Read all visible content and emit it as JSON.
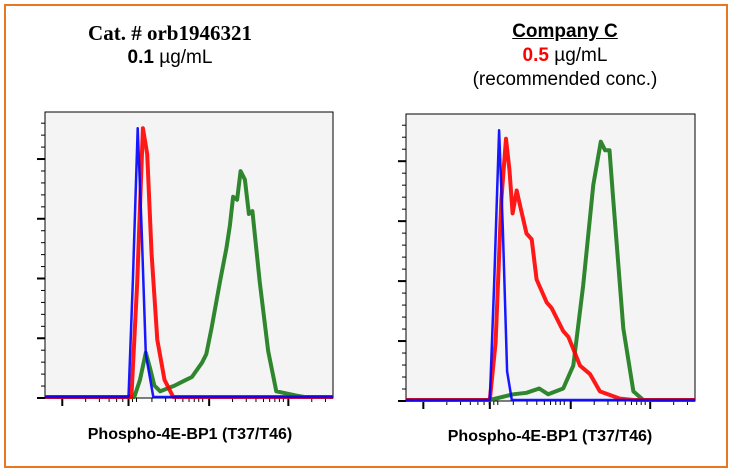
{
  "left_header": {
    "title": "Cat. # orb1946321",
    "conc_value": "0.1",
    "conc_unit": "µg/mL"
  },
  "right_header": {
    "title": "Company C",
    "conc_value": "0.5",
    "conc_unit": "µg/mL",
    "note": "(recommended conc.)"
  },
  "colors": {
    "frame": "#e87722",
    "blue": "#0000ff",
    "red": "#ff0000",
    "green": "#1a7a1a",
    "highlight": "#ff0000"
  },
  "chart_data": [
    {
      "type": "line",
      "xlabel": "Phospho-4E-BP1 (T37/T46)",
      "ylabel": "",
      "x_scale": "log",
      "xlim": [
        0,
        1
      ],
      "ylim": [
        0,
        1
      ],
      "grid": false,
      "series": [
        {
          "color": "blue",
          "points": [
            [
              0,
              0
            ],
            [
              0.29,
              0
            ],
            [
              0.305,
              0.4
            ],
            [
              0.322,
              0.94
            ],
            [
              0.335,
              0.6
            ],
            [
              0.35,
              0.15
            ],
            [
              0.376,
              0
            ],
            [
              1,
              0
            ]
          ]
        },
        {
          "color": "red",
          "points": [
            [
              0,
              0
            ],
            [
              0.3,
              0
            ],
            [
              0.32,
              0.4
            ],
            [
              0.34,
              0.94
            ],
            [
              0.355,
              0.85
            ],
            [
              0.37,
              0.5
            ],
            [
              0.39,
              0.2
            ],
            [
              0.415,
              0.06
            ],
            [
              0.445,
              0
            ],
            [
              1,
              0
            ]
          ]
        },
        {
          "color": "green",
          "points": [
            [
              0,
              0
            ],
            [
              0.31,
              0
            ],
            [
              0.33,
              0.06
            ],
            [
              0.35,
              0.155
            ],
            [
              0.365,
              0.1
            ],
            [
              0.38,
              0.04
            ],
            [
              0.4,
              0.02
            ],
            [
              0.45,
              0.04
            ],
            [
              0.49,
              0.06
            ],
            [
              0.51,
              0.07
            ],
            [
              0.545,
              0.12
            ],
            [
              0.56,
              0.15
            ],
            [
              0.578,
              0.24
            ],
            [
              0.607,
              0.4
            ],
            [
              0.63,
              0.52
            ],
            [
              0.642,
              0.6
            ],
            [
              0.653,
              0.7
            ],
            [
              0.667,
              0.69
            ],
            [
              0.679,
              0.79
            ],
            [
              0.694,
              0.76
            ],
            [
              0.708,
              0.64
            ],
            [
              0.72,
              0.65
            ],
            [
              0.746,
              0.4
            ],
            [
              0.775,
              0.16
            ],
            [
              0.803,
              0.02
            ],
            [
              0.873,
              0.005
            ],
            [
              0.9,
              0
            ],
            [
              1,
              0
            ]
          ]
        }
      ]
    },
    {
      "type": "line",
      "xlabel": "Phospho-4E-BP1 (T37/T46)",
      "ylabel": "",
      "x_scale": "log",
      "xlim": [
        0,
        1
      ],
      "ylim": [
        0,
        1
      ],
      "grid": false,
      "series": [
        {
          "color": "blue",
          "points": [
            [
              0,
              0
            ],
            [
              0.29,
              0
            ],
            [
              0.305,
              0.4
            ],
            [
              0.322,
              0.94
            ],
            [
              0.335,
              0.6
            ],
            [
              0.35,
              0.1
            ],
            [
              0.366,
              0
            ],
            [
              1,
              0
            ]
          ]
        },
        {
          "color": "red",
          "points": [
            [
              0,
              0
            ],
            [
              0.29,
              0
            ],
            [
              0.31,
              0.2
            ],
            [
              0.33,
              0.7
            ],
            [
              0.346,
              0.91
            ],
            [
              0.358,
              0.8
            ],
            [
              0.369,
              0.65
            ],
            [
              0.383,
              0.73
            ],
            [
              0.394,
              0.68
            ],
            [
              0.417,
              0.58
            ],
            [
              0.435,
              0.56
            ],
            [
              0.452,
              0.42
            ],
            [
              0.487,
              0.34
            ],
            [
              0.504,
              0.32
            ],
            [
              0.544,
              0.24
            ],
            [
              0.562,
              0.22
            ],
            [
              0.602,
              0.12
            ],
            [
              0.637,
              0.09
            ],
            [
              0.671,
              0.03
            ],
            [
              0.74,
              0.005
            ],
            [
              0.787,
              0
            ],
            [
              1,
              0
            ]
          ]
        },
        {
          "color": "green",
          "points": [
            [
              0,
              0
            ],
            [
              0.29,
              0
            ],
            [
              0.371,
              0.02
            ],
            [
              0.417,
              0.025
            ],
            [
              0.461,
              0.04
            ],
            [
              0.492,
              0.02
            ],
            [
              0.544,
              0.04
            ],
            [
              0.579,
              0.12
            ],
            [
              0.613,
              0.4
            ],
            [
              0.648,
              0.75
            ],
            [
              0.674,
              0.9
            ],
            [
              0.689,
              0.87
            ],
            [
              0.704,
              0.87
            ],
            [
              0.717,
              0.7
            ],
            [
              0.752,
              0.25
            ],
            [
              0.787,
              0.03
            ],
            [
              0.821,
              0
            ],
            [
              1,
              0
            ]
          ]
        }
      ]
    }
  ]
}
